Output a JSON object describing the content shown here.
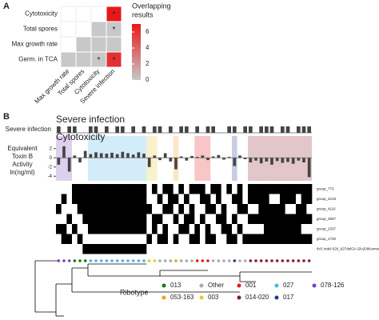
{
  "panel_a": {
    "label": "A",
    "chart_data": {
      "type": "heatmap",
      "rows": [
        "Cytotoxicity",
        "Total spores",
        "Max growth rate",
        "Germ. in TCA"
      ],
      "columns": [
        "Max growth rate",
        "Total spores",
        "Cytotoxicity",
        "Severe infection"
      ],
      "values": [
        [
          null,
          null,
          null,
          7
        ],
        [
          null,
          null,
          0,
          0
        ],
        [
          null,
          0,
          0,
          0
        ],
        [
          0,
          0,
          0,
          6
        ]
      ],
      "cell_labels": [
        [
          null,
          null,
          null,
          "*"
        ],
        [
          null,
          null,
          null,
          "*"
        ],
        [
          null,
          null,
          null,
          null
        ],
        [
          null,
          null,
          "*",
          "*"
        ]
      ],
      "legend_title": [
        "Overlapping",
        "results"
      ],
      "clim": [
        0,
        7
      ],
      "cticks": [
        0,
        2,
        4,
        6
      ],
      "low_color": "#c8c8c8",
      "high_color": "#e8171a"
    }
  },
  "panel_b": {
    "label": "B",
    "severe": {
      "title": "Severe infection",
      "ylabel": "Severe infection",
      "color": "#444444",
      "values": [
        1,
        0,
        1,
        1,
        0,
        0,
        1,
        1,
        0,
        1,
        0,
        1,
        1,
        0,
        1,
        0,
        1,
        0,
        1,
        1,
        0,
        1,
        0,
        1,
        1,
        0,
        1,
        0,
        1,
        1,
        0,
        0,
        1,
        1,
        0,
        1,
        1,
        0,
        1,
        1,
        1,
        0,
        1,
        1,
        0,
        1,
        1,
        1
      ]
    },
    "cytotoxicity": {
      "type": "bar",
      "title": "Cytotoxicity",
      "ylabel": [
        "Equivalent",
        "Toxin B",
        "Activity",
        "ln(ng/ml)"
      ],
      "color": "#444444",
      "ylim": [
        -5,
        3
      ],
      "yticks": [
        2,
        0,
        -2,
        -4
      ],
      "values": [
        -1.5,
        2.5,
        -3,
        0.5,
        -1,
        1.5,
        0.8,
        1.2,
        1,
        0.9,
        1.1,
        0.8,
        1.3,
        1,
        0.7,
        1.2,
        0.9,
        -2,
        0.5,
        -0.5,
        1.0,
        -0.8,
        -2.5,
        0.3,
        -0.6,
        0.4,
        0.2,
        0.5,
        -0.5,
        0.3,
        0.6,
        -0.4,
        0.2,
        -1.8,
        0.5,
        -0.3,
        -1,
        -0.6,
        -1.2,
        -0.8,
        -1.5,
        -0.7,
        -1.1,
        -0.9,
        -1.3,
        -0.6,
        -1,
        -4.2
      ]
    },
    "matrix": {
      "rows": [
        "group_773",
        "group_4219",
        "group_4116",
        "group_3657",
        "group_2337",
        "group_1730",
        "INS Indel 626_627delGA Glu209Kamenhf"
      ],
      "values": [
        [
          0,
          0,
          0,
          1,
          1,
          1,
          1,
          1,
          1,
          1,
          1,
          1,
          1,
          1,
          1,
          1,
          1,
          0,
          1,
          0,
          1,
          1,
          0,
          1,
          0,
          1,
          1,
          1,
          0,
          1,
          1,
          0,
          1,
          0,
          1,
          0,
          1,
          1,
          1,
          1,
          1,
          1,
          1,
          1,
          1,
          1,
          1,
          1
        ],
        [
          0,
          1,
          0,
          1,
          1,
          1,
          1,
          1,
          1,
          1,
          1,
          1,
          1,
          1,
          1,
          1,
          1,
          0,
          0,
          1,
          0,
          1,
          1,
          0,
          1,
          0,
          0,
          1,
          1,
          0,
          1,
          0,
          0,
          1,
          1,
          0,
          1,
          1,
          1,
          1,
          0,
          0,
          1,
          1,
          1,
          0,
          1,
          1
        ],
        [
          1,
          0,
          0,
          0,
          1,
          1,
          1,
          1,
          1,
          1,
          1,
          1,
          1,
          1,
          1,
          1,
          1,
          1,
          0,
          0,
          1,
          1,
          0,
          1,
          0,
          1,
          0,
          0,
          1,
          1,
          0,
          1,
          0,
          0,
          1,
          1,
          0,
          0,
          1,
          1,
          1,
          1,
          1,
          0,
          0,
          1,
          1,
          0
        ],
        [
          0,
          0,
          1,
          0,
          0,
          1,
          1,
          1,
          1,
          1,
          1,
          1,
          1,
          1,
          1,
          1,
          1,
          0,
          1,
          1,
          0,
          0,
          1,
          0,
          1,
          1,
          0,
          1,
          0,
          0,
          1,
          1,
          0,
          1,
          0,
          0,
          1,
          1,
          1,
          1,
          1,
          1,
          1,
          1,
          1,
          1,
          1,
          1
        ],
        [
          1,
          1,
          0,
          1,
          0,
          0,
          1,
          1,
          1,
          1,
          1,
          1,
          1,
          1,
          1,
          1,
          1,
          0,
          1,
          0,
          1,
          0,
          0,
          1,
          1,
          0,
          1,
          0,
          1,
          0,
          0,
          1,
          1,
          0,
          1,
          0,
          0,
          0,
          0,
          1,
          1,
          1,
          1,
          1,
          1,
          1,
          0,
          0
        ],
        [
          0,
          1,
          1,
          0,
          1,
          0,
          0,
          0,
          0,
          0,
          0,
          0,
          0,
          0,
          0,
          0,
          0,
          1,
          0,
          1,
          1,
          0,
          1,
          0,
          0,
          1,
          1,
          0,
          1,
          1,
          0,
          0,
          1,
          1,
          0,
          1,
          1,
          1,
          1,
          1,
          1,
          1,
          1,
          1,
          1,
          1,
          1,
          1
        ],
        [
          0,
          0,
          0,
          0,
          0,
          1,
          1,
          1,
          1,
          1,
          1,
          1,
          1,
          1,
          1,
          1,
          1,
          0,
          0,
          0,
          0,
          0,
          0,
          0,
          0,
          0,
          0,
          0,
          0,
          0,
          0,
          0,
          0,
          0,
          0,
          0,
          0,
          0,
          0,
          0,
          0,
          0,
          0,
          0,
          0,
          0,
          0,
          0
        ]
      ]
    },
    "ribotype_title": "Ribotype",
    "ribotypes": [
      {
        "name": "013",
        "color": "#1a7a1a",
        "highlight": false
      },
      {
        "name": "Other",
        "color": "#aaaaaa",
        "highlight": false
      },
      {
        "name": "001",
        "color": "#e41a1c",
        "highlight": true
      },
      {
        "name": "027",
        "color": "#4fb3e8",
        "highlight": true
      },
      {
        "name": "078-126",
        "color": "#7b3fbf",
        "highlight": true
      },
      {
        "name": "053-163",
        "color": "#f0a020",
        "highlight": true
      },
      {
        "name": "003",
        "color": "#e8c830",
        "highlight": true
      },
      {
        "name": "014-020",
        "color": "#8b1a2b",
        "highlight": true
      },
      {
        "name": "017",
        "color": "#1f3a93",
        "highlight": true
      }
    ],
    "tips": [
      4,
      4,
      4,
      0,
      0,
      0,
      3,
      3,
      3,
      3,
      3,
      3,
      3,
      3,
      3,
      3,
      3,
      6,
      6,
      1,
      1,
      1,
      5,
      1,
      1,
      1,
      2,
      2,
      2,
      1,
      1,
      1,
      1,
      8,
      1,
      1,
      7,
      7,
      7,
      7,
      7,
      7,
      7,
      7,
      7,
      7,
      7,
      7
    ]
  }
}
